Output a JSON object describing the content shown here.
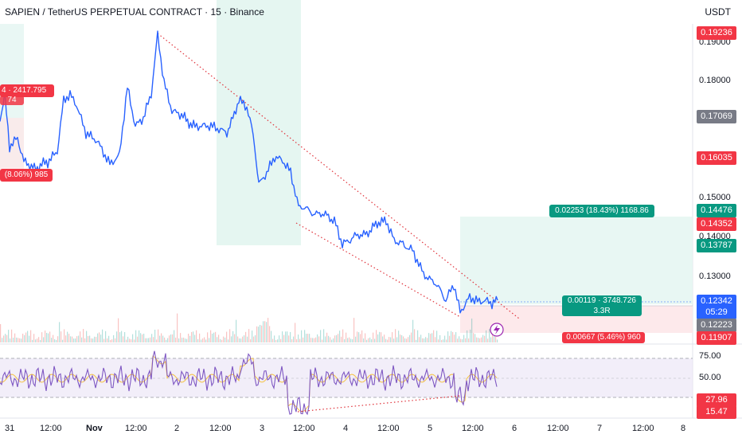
{
  "header": {
    "title": "SAPIEN / TetherUS PERPETUAL CONTRACT · 15 · Binance",
    "currency": "USDT"
  },
  "price_axis": {
    "ticks": [
      "0.19000",
      "0.18000",
      "0.15000",
      "0.14000",
      "0.13000"
    ],
    "labels": [
      {
        "text": "0.19236",
        "color": "#f23645"
      },
      {
        "text": "0.17069",
        "color": "#787b86"
      },
      {
        "text": "0.16035",
        "color": "#f23645"
      },
      {
        "text": "0.14476",
        "color": "#089981"
      },
      {
        "text": "0.14352",
        "color": "#f23645"
      },
      {
        "text": "0.13787",
        "color": "#089981"
      },
      {
        "text": "0.12342",
        "color": "#2962ff"
      },
      {
        "text": "05:29",
        "color": "#2962ff"
      },
      {
        "text": "0.12223",
        "color": "#787b86"
      },
      {
        "text": "0.11907",
        "color": "#f23645"
      }
    ]
  },
  "rsi_axis": {
    "ticks": [
      "75.00",
      "50.00"
    ],
    "labels": [
      {
        "text": "27.96",
        "color": "#f23645"
      },
      {
        "text": "15.47",
        "color": "#f23645"
      }
    ]
  },
  "time_axis": [
    "31",
    "12:00",
    "Nov",
    "12:00",
    "2",
    "12:00",
    "3",
    "12:00",
    "4",
    "12:00",
    "5",
    "12:00",
    "6",
    "12:00",
    "7",
    "12:00",
    "8"
  ],
  "positions": {
    "left_top_label": "4 · 2417.795",
    "left_top_sub": "74",
    "left_bottom_label": "(8.06%) 985",
    "target_label": "0.02253 (18.43%) 1168.86",
    "entry_label": "0.00119 · 3748.726",
    "entry_sub": "3.3R",
    "stop_label": "0.00667 (5.46%) 960"
  },
  "colors": {
    "line": "#2962ff",
    "rsi": "#7e57c2",
    "rsi_ma": "#f5c242",
    "trend": "#e0333b",
    "profit_zone": "#e0f4ef",
    "loss_zone": "#fde7e9"
  }
}
